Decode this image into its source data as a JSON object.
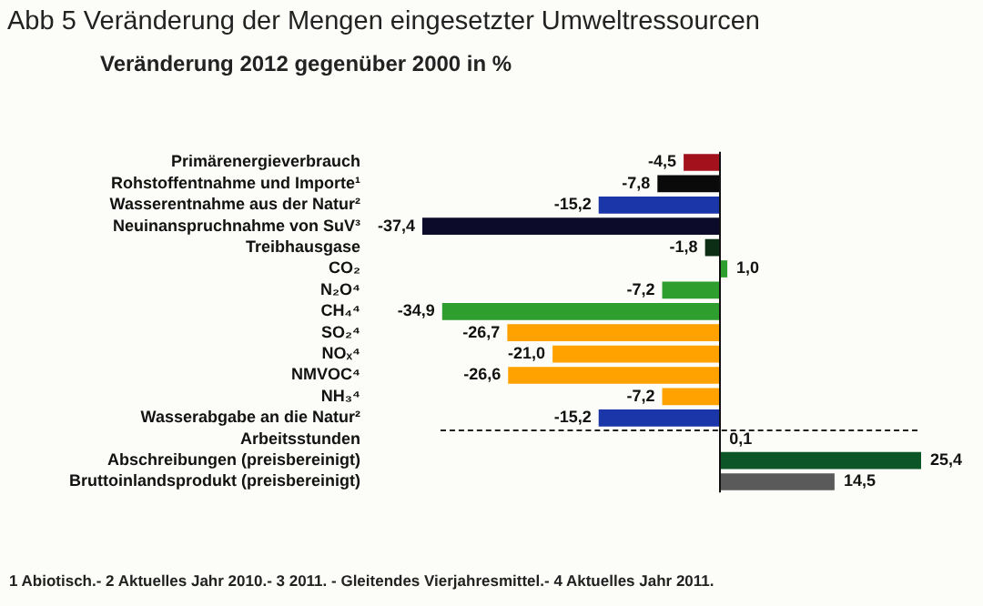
{
  "chart_data": {
    "type": "bar",
    "orientation": "horizontal",
    "title": "Abb 5 Veränderung der Mengen eingesetzter Umweltressourcen",
    "subtitle": "Veränderung 2012 gegenüber 2000 in %",
    "categories": [
      "Primärenergieverbrauch",
      "Rohstoffentnahme und Importe¹",
      "Wasserentnahme aus der Natur²",
      "Neuinanspruchnahme von SuV³",
      "Treibhausgase",
      "CO₂",
      "N₂O⁴",
      "CH₄⁴",
      "SO₂⁴",
      "NOₓ⁴",
      "NMVOC⁴",
      "NH₃⁴",
      "Wasserabgabe an die Natur²",
      "Arbeitsstunden",
      "Abschreibungen (preisbereinigt)",
      "Bruttoinlandsprodukt (preisbereinigt)"
    ],
    "values": [
      -4.5,
      -7.8,
      -15.2,
      -37.4,
      -1.8,
      1.0,
      -7.2,
      -34.9,
      -26.7,
      -21.0,
      -26.6,
      -7.2,
      -15.2,
      0.1,
      25.4,
      14.5
    ],
    "value_labels": [
      "-4,5",
      "-7,8",
      "-15,2",
      "-37,4",
      "-1,8",
      "1,0",
      "-7,2",
      "-34,9",
      "-26,7",
      "-21,0",
      "-26,6",
      "-7,2",
      "-15,2",
      "0,1",
      "25,4",
      "14,5"
    ],
    "colors": [
      "#a3111c",
      "#0a0a0a",
      "#1a36a8",
      "#0c0c2a",
      "#0c2e14",
      "#2e9e2e",
      "#2e9e2e",
      "#2e9e2e",
      "#ffa200",
      "#ffa200",
      "#ffa200",
      "#ffa200",
      "#1a36a8",
      "#1a36a8",
      "#0b5526",
      "#5a5a5a"
    ],
    "grid": false,
    "legend": false,
    "tick_labels": "y",
    "annotations": [
      "1 Abiotisch.- 2 Aktuelles Jahr 2010.- 3 2011. - Gleitendes Vierjahresmittel.- 4 Aktuelles Jahr 2011."
    ]
  }
}
